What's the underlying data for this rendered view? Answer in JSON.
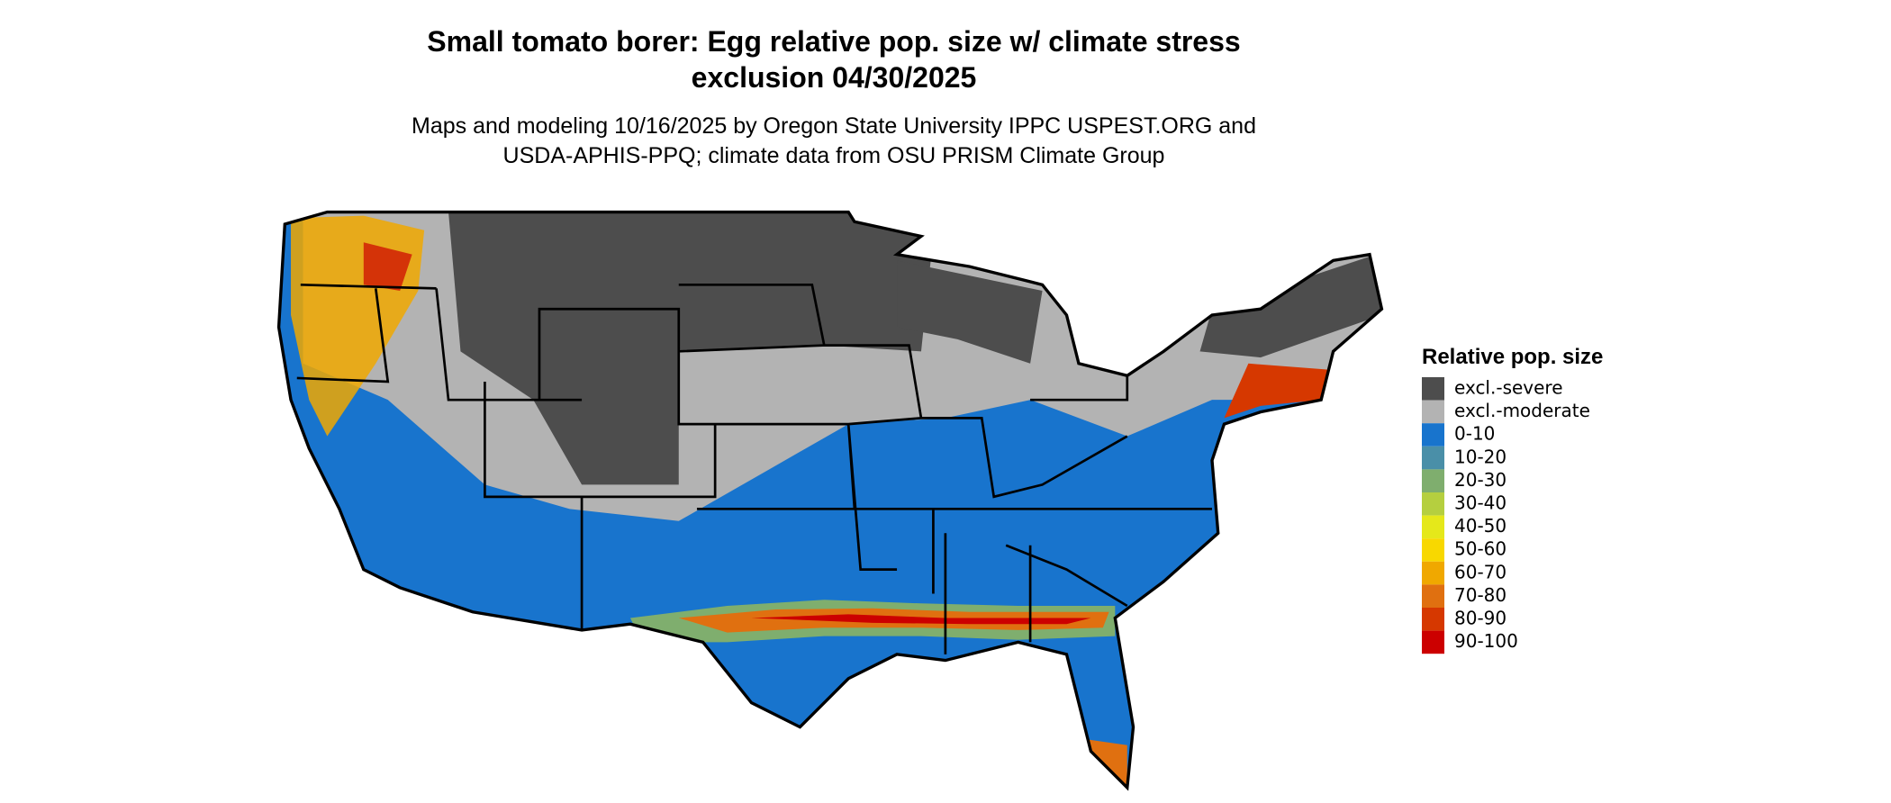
{
  "map": {
    "title": [
      "Small tomato borer: Egg relative pop. size w/ climate stress",
      "exclusion 04/30/2025"
    ],
    "subtitle": [
      "Maps and modeling 10/16/2025 by Oregon State University IPPC USPEST.ORG and",
      "USDA-APHIS-PPQ; climate data from OSU PRISM Climate Group"
    ],
    "legend": {
      "title": "Relative pop. size",
      "items": [
        {
          "label": "excl.-severe",
          "color": "#4d4d4d"
        },
        {
          "label": "excl.-moderate",
          "color": "#b3b3b3"
        },
        {
          "label": "0-10",
          "color": "#1874cd"
        },
        {
          "label": "10-20",
          "color": "#4a8fa8"
        },
        {
          "label": "20-30",
          "color": "#7fae6e"
        },
        {
          "label": "30-40",
          "color": "#b5cf3f"
        },
        {
          "label": "40-50",
          "color": "#e5e81a"
        },
        {
          "label": "50-60",
          "color": "#f8d800"
        },
        {
          "label": "60-70",
          "color": "#f0a800"
        },
        {
          "label": "70-80",
          "color": "#e07010"
        },
        {
          "label": "80-90",
          "color": "#d63800"
        },
        {
          "label": "90-100",
          "color": "#cc0000"
        }
      ]
    }
  }
}
